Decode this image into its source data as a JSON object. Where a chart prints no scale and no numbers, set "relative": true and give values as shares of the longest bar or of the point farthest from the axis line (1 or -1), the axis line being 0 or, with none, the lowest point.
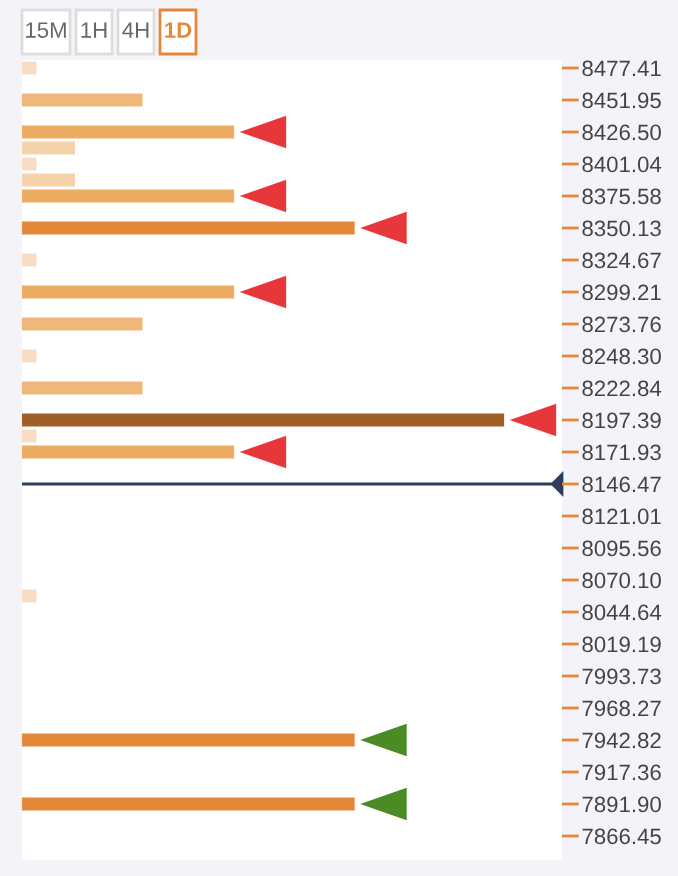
{
  "chart_data": {
    "type": "bar",
    "orientation": "horizontal",
    "relative": true,
    "annotations": [
      "15M",
      "1H",
      "4H",
      "1D"
    ],
    "categories": [
      "8477.41",
      null,
      "8451.95",
      null,
      "8426.50",
      null,
      "8401.04",
      null,
      "8375.58",
      null,
      "8350.13",
      null,
      "8324.67",
      null,
      "8299.21",
      null,
      "8273.76",
      null,
      "8248.30",
      null,
      "8222.84",
      null,
      "8197.39",
      null,
      "8171.93",
      null,
      "8146.47",
      null,
      "8121.01",
      null,
      "8095.56",
      null,
      "8070.10",
      null,
      "8044.64",
      null,
      "8019.19",
      null,
      "7993.73",
      null,
      "7968.27",
      null,
      "7942.82",
      null,
      "7917.36",
      null,
      "7891.90",
      null,
      "7866.45",
      null
    ],
    "values": [
      0.03,
      null,
      0.25,
      null,
      0.44,
      0.11,
      0.03,
      0.11,
      0.44,
      null,
      0.69,
      null,
      0.03,
      null,
      0.44,
      null,
      0.25,
      null,
      0.03,
      null,
      0.25,
      null,
      1,
      0.03,
      0.44,
      null,
      null,
      null,
      null,
      null,
      null,
      null,
      null,
      0.03,
      null,
      null,
      null,
      null,
      null,
      null,
      null,
      null,
      0.69,
      null,
      null,
      null,
      0.69,
      null,
      null,
      null
    ],
    "colors": [
      "#f9dcc4",
      null,
      "#efb77a",
      null,
      "#eeac62",
      "#f6d3aa",
      "#f9dcc4",
      "#f6d3aa",
      "#eeac62",
      null,
      "#e5883a",
      null,
      "#f9dcc4",
      null,
      "#eeac62",
      null,
      "#efb77a",
      null,
      "#f9dcc4",
      null,
      "#efb77a",
      null,
      "#a05f26",
      "#f9dcc4",
      "#eeac62",
      null,
      null,
      null,
      null,
      null,
      null,
      null,
      null,
      "#f9dcc4",
      null,
      null,
      null,
      null,
      null,
      null,
      null,
      null,
      "#e5883a",
      null,
      null,
      null,
      "#e5883a",
      null,
      null,
      null
    ],
    "ref_lines": [
      {
        "axis": "y",
        "value": "8146.47",
        "color": "#2c3e5a"
      }
    ],
    "legend": false,
    "grid": false
  }
}
